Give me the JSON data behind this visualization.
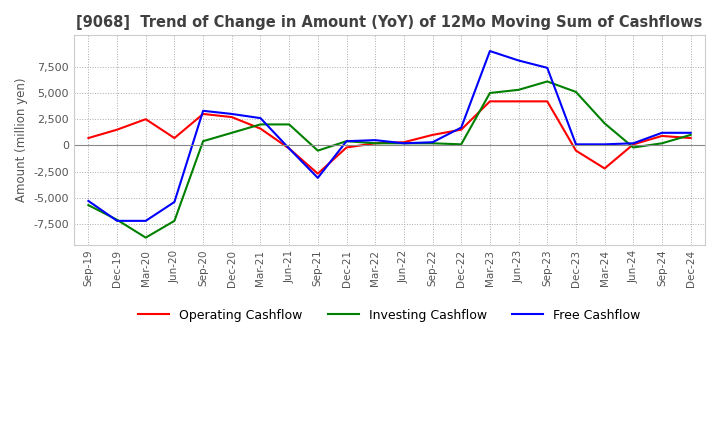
{
  "title": "[9068]  Trend of Change in Amount (YoY) of 12Mo Moving Sum of Cashflows",
  "ylabel": "Amount (million yen)",
  "ylim": [
    -9500,
    10500
  ],
  "yticks": [
    -7500,
    -5000,
    -2500,
    0,
    2500,
    5000,
    7500
  ],
  "x_labels": [
    "Sep-19",
    "Dec-19",
    "Mar-20",
    "Jun-20",
    "Sep-20",
    "Dec-20",
    "Mar-21",
    "Jun-21",
    "Sep-21",
    "Dec-21",
    "Mar-22",
    "Jun-22",
    "Sep-22",
    "Dec-22",
    "Mar-23",
    "Jun-23",
    "Sep-23",
    "Dec-23",
    "Mar-24",
    "Jun-24",
    "Sep-24",
    "Dec-24"
  ],
  "operating": [
    700,
    1500,
    2500,
    700,
    3000,
    2700,
    1600,
    -300,
    -2700,
    -200,
    200,
    300,
    1000,
    1500,
    4200,
    4200,
    4200,
    -500,
    -2200,
    100,
    900,
    700
  ],
  "investing": [
    -5700,
    -7100,
    -8800,
    -7200,
    400,
    1200,
    2000,
    2000,
    -500,
    400,
    200,
    200,
    200,
    100,
    5000,
    5300,
    6100,
    5100,
    2100,
    -200,
    200,
    1000
  ],
  "free": [
    -5300,
    -7200,
    -7200,
    -5400,
    3300,
    3000,
    2600,
    -300,
    -3100,
    400,
    500,
    200,
    300,
    1700,
    9000,
    8100,
    7400,
    100,
    100,
    200,
    1200,
    1200
  ],
  "operating_color": "#ff0000",
  "investing_color": "#008000",
  "free_color": "#0000ff",
  "background_color": "#ffffff",
  "grid_color": "#aaaaaa",
  "title_color": "#404040",
  "legend_labels": [
    "Operating Cashflow",
    "Investing Cashflow",
    "Free Cashflow"
  ]
}
